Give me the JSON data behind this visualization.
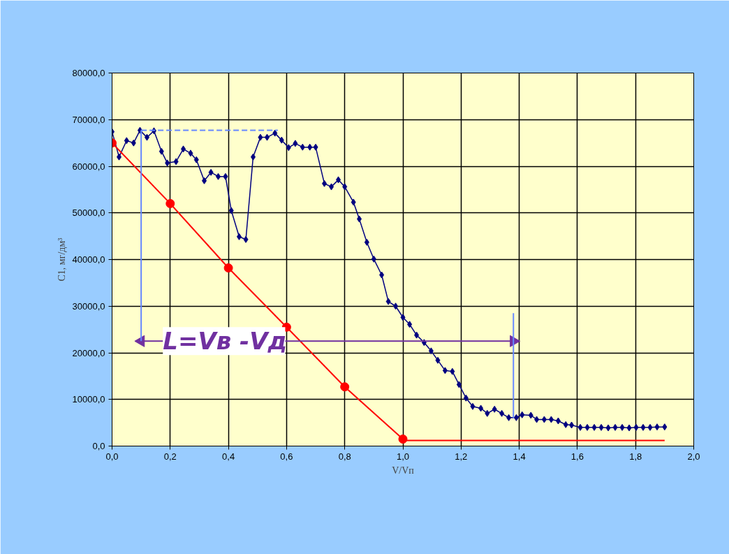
{
  "chart_data": {
    "type": "line",
    "xlabel": "V/Vп",
    "ylabel": "C1, мг/дм³",
    "xlim": [
      0,
      2
    ],
    "ylim": [
      0,
      80000
    ],
    "xticks": [
      {
        "value": 0,
        "label": "0,0"
      },
      {
        "value": 0.2,
        "label": "0,2"
      },
      {
        "value": 0.4,
        "label": "0,4"
      },
      {
        "value": 0.6,
        "label": "0,6"
      },
      {
        "value": 0.8,
        "label": "0,8"
      },
      {
        "value": 1.0,
        "label": "1,0"
      },
      {
        "value": 1.2,
        "label": "1,2"
      },
      {
        "value": 1.4,
        "label": "1,4"
      },
      {
        "value": 1.6,
        "label": "1,6"
      },
      {
        "value": 1.8,
        "label": "1,8"
      },
      {
        "value": 2.0,
        "label": "2,0"
      }
    ],
    "yticks": [
      {
        "value": 0,
        "label": "0,0"
      },
      {
        "value": 10000,
        "label": "10000,0"
      },
      {
        "value": 20000,
        "label": "20000,0"
      },
      {
        "value": 30000,
        "label": "30000,0"
      },
      {
        "value": 40000,
        "label": "40000,0"
      },
      {
        "value": 50000,
        "label": "50000,0"
      },
      {
        "value": 60000,
        "label": "60000,0"
      },
      {
        "value": 70000,
        "label": "70000,0"
      },
      {
        "value": 80000,
        "label": "80000,0"
      }
    ],
    "grid": true,
    "series": [
      {
        "color": "#000080",
        "marker": "diamond",
        "line_style": "solid",
        "x": [
          0.0,
          0.024,
          0.05,
          0.074,
          0.096,
          0.12,
          0.144,
          0.17,
          0.19,
          0.22,
          0.245,
          0.27,
          0.29,
          0.317,
          0.34,
          0.365,
          0.39,
          0.41,
          0.437,
          0.46,
          0.485,
          0.51,
          0.533,
          0.56,
          0.583,
          0.607,
          0.63,
          0.655,
          0.68,
          0.7,
          0.73,
          0.754,
          0.778,
          0.8,
          0.83,
          0.85,
          0.876,
          0.9,
          0.927,
          0.95,
          0.975,
          1.0,
          1.023,
          1.047,
          1.073,
          1.097,
          1.12,
          1.145,
          1.17,
          1.193,
          1.217,
          1.24,
          1.268,
          1.29,
          1.315,
          1.34,
          1.364,
          1.39,
          1.41,
          1.44,
          1.46,
          1.486,
          1.51,
          1.534,
          1.56,
          1.58,
          1.61,
          1.634,
          1.658,
          1.682,
          1.706,
          1.73,
          1.754,
          1.778,
          1.802,
          1.826,
          1.85,
          1.874,
          1.9
        ],
        "values": [
          67400,
          62000,
          65500,
          65000,
          67700,
          66200,
          67600,
          63200,
          60700,
          61000,
          63700,
          62800,
          61400,
          56900,
          58700,
          57800,
          57800,
          50500,
          44900,
          44300,
          62000,
          66200,
          66200,
          67100,
          65600,
          64000,
          64900,
          64100,
          64100,
          64100,
          56300,
          55600,
          57100,
          55600,
          52300,
          48700,
          43700,
          40100,
          36700,
          31000,
          30000,
          27600,
          26100,
          23800,
          22200,
          20400,
          18400,
          16200,
          16000,
          13200,
          10300,
          8500,
          8100,
          7000,
          7900,
          7000,
          6100,
          6100,
          6700,
          6600,
          5700,
          5700,
          5700,
          5400,
          4600,
          4500,
          4000,
          4000,
          4000,
          4000,
          3900,
          4000,
          4000,
          3900,
          4000,
          4000,
          4000,
          4100,
          4100
        ]
      },
      {
        "color": "#ff0000",
        "marker": "circle",
        "line_style": "solid",
        "x": [
          0.0,
          0.2,
          0.4,
          0.6,
          0.8,
          1.0
        ],
        "values": [
          65000,
          52000,
          38200,
          25500,
          12700,
          1500
        ]
      },
      {
        "color": "#ff0000",
        "marker": "none",
        "line_style": "solid",
        "x": [
          1.0,
          1.9
        ],
        "values": [
          1200,
          1200
        ]
      },
      {
        "color": "#7030a0",
        "marker": "triangle",
        "line_style": "solid",
        "x": [
          0.1,
          1.38
        ],
        "values": [
          22500,
          22500
        ]
      },
      {
        "color": "#6688ff",
        "marker": "none",
        "line_style": "dashed",
        "x": [
          0.1,
          0.57
        ],
        "values": [
          67700,
          67700
        ]
      },
      {
        "color": "#6688ff",
        "marker": "none",
        "line_style": "solid",
        "x": [
          0.1,
          0.1
        ],
        "values": [
          67700,
          22500
        ]
      },
      {
        "color": "#6688ff",
        "marker": "none",
        "line_style": "solid",
        "x": [
          1.38,
          1.38
        ],
        "values": [
          28500,
          6000
        ]
      }
    ],
    "annotations": [
      {
        "text": "L=Vв -Vд",
        "x": 0.385,
        "y": 22500
      }
    ]
  }
}
